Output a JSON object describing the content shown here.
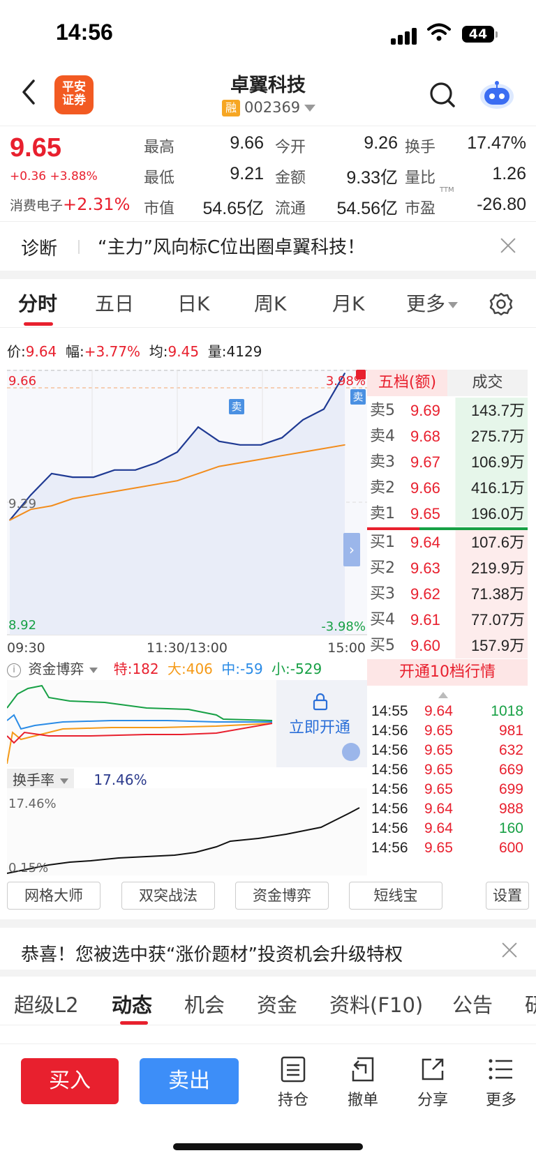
{
  "status": {
    "time": "14:56",
    "battery": "44"
  },
  "header": {
    "logo_line1": "平安",
    "logo_line2": "证券",
    "title": "卓翼科技",
    "margin_badge": "融",
    "code": "002369"
  },
  "quote": {
    "price": "9.65",
    "change": "+0.36 +3.88%",
    "sector_name": "消费电子",
    "sector_change": "+2.31%",
    "high_label": "最高",
    "high": "9.66",
    "open_label": "今开",
    "open": "9.26",
    "turnover_label": "换手",
    "turnover": "17.47%",
    "low_label": "最低",
    "low": "9.21",
    "amount_label": "金额",
    "amount": "9.33亿",
    "vol_ratio_label": "量比",
    "vol_ratio": "1.26",
    "mktcap_label": "市值",
    "mktcap": "54.65亿",
    "float_label": "流通",
    "float": "54.56亿",
    "pe_label": "市盈",
    "pe_suffix": "TTM",
    "pe": "-26.80"
  },
  "diagnosis": {
    "label": "诊断",
    "text": "“主力”风向标C位出圈卓翼科技！"
  },
  "chart_tabs": [
    "分时",
    "五日",
    "日K",
    "周K",
    "月K",
    "更多"
  ],
  "info_line": {
    "price_label": "价:",
    "price": "9.64",
    "amp_label": "幅:",
    "amp": "+3.77%",
    "avg_label": "均:",
    "avg": "9.45",
    "vol_label": "量:",
    "vol": "4129"
  },
  "chart_labels": {
    "top_left": "9.66",
    "top_right": "3.98%",
    "mid_left": "9.29",
    "bottom_left": "8.92",
    "bottom_right": "-3.98%",
    "t_start": "09:30",
    "t_mid": "11:30/13:00",
    "t_end": "15:00",
    "sell_mark": "卖"
  },
  "chart_data": {
    "type": "line",
    "title": "",
    "xlabel": "",
    "ylabel": "",
    "x": [
      "09:30",
      "09:45",
      "10:00",
      "10:15",
      "10:30",
      "10:45",
      "11:00",
      "11:15",
      "11:30/13:00",
      "13:15",
      "13:30",
      "13:45",
      "14:00",
      "14:15",
      "14:30",
      "14:45",
      "14:55"
    ],
    "ylim": [
      8.92,
      9.66
    ],
    "series": [
      {
        "values": [
          9.24,
          9.31,
          9.37,
          9.36,
          9.36,
          9.38,
          9.38,
          9.4,
          9.43,
          9.5,
          9.46,
          9.45,
          9.45,
          9.47,
          9.52,
          9.55,
          9.65
        ]
      },
      {
        "values": [
          9.24,
          9.27,
          9.28,
          9.3,
          9.31,
          9.32,
          9.33,
          9.34,
          9.35,
          9.37,
          9.39,
          9.4,
          9.41,
          9.42,
          9.43,
          9.44,
          9.45
        ]
      }
    ]
  },
  "orderbook": {
    "head_left": "五档(额)",
    "head_right": "成交",
    "asks": [
      {
        "label": "卖5",
        "price": "9.69",
        "amount": "143.7万"
      },
      {
        "label": "卖4",
        "price": "9.68",
        "amount": "275.7万"
      },
      {
        "label": "卖3",
        "price": "9.67",
        "amount": "106.9万"
      },
      {
        "label": "卖2",
        "price": "9.66",
        "amount": "416.1万"
      },
      {
        "label": "卖1",
        "price": "9.65",
        "amount": "196.0万"
      }
    ],
    "bids": [
      {
        "label": "买1",
        "price": "9.64",
        "amount": "107.6万"
      },
      {
        "label": "买2",
        "price": "9.63",
        "amount": "219.9万"
      },
      {
        "label": "买3",
        "price": "9.62",
        "amount": "71.38万"
      },
      {
        "label": "买4",
        "price": "9.61",
        "amount": "77.07万"
      },
      {
        "label": "买5",
        "price": "9.60",
        "amount": "157.9万"
      }
    ],
    "open_level10": "开通10档行情"
  },
  "trades": [
    {
      "time": "14:55",
      "price": "9.64",
      "vol": "1018"
    },
    {
      "time": "14:56",
      "price": "9.65",
      "vol": "981"
    },
    {
      "time": "14:56",
      "price": "9.65",
      "vol": "632"
    },
    {
      "time": "14:56",
      "price": "9.65",
      "vol": "669"
    },
    {
      "time": "14:56",
      "price": "9.65",
      "vol": "699"
    },
    {
      "time": "14:56",
      "price": "9.64",
      "vol": "988"
    },
    {
      "time": "14:56",
      "price": "9.64",
      "vol": "160"
    },
    {
      "time": "14:56",
      "price": "9.65",
      "vol": "600"
    }
  ],
  "fund": {
    "label": "资金博弈",
    "special": "特:182",
    "large": "大:406",
    "medium": "中:-59",
    "small": "小:-529",
    "unlock": "立即开通"
  },
  "turnover_chart": {
    "label": "换手率",
    "value": "17.46%",
    "top": "17.46%",
    "bottom": "0.15%"
  },
  "tools": [
    "网格大师",
    "双突战法",
    "资金博弈",
    "短线宝",
    "设置"
  ],
  "promo": {
    "text": "恭喜！您被选中获“涨价题材”投资机会升级特权"
  },
  "news_tabs": [
    "超级L2",
    "动态",
    "机会",
    "资金",
    "资料(F10)",
    "公告",
    "研"
  ],
  "bottom": {
    "buy": "买入",
    "sell": "卖出",
    "hold": "持仓",
    "cancel": "撤单",
    "share": "分享",
    "more": "更多"
  },
  "colors": {
    "up": "#e8202e",
    "down": "#17a045",
    "price_line": "#1f3a93",
    "avg_line": "#f28c1c",
    "sell_button": "#3d8ef8"
  }
}
